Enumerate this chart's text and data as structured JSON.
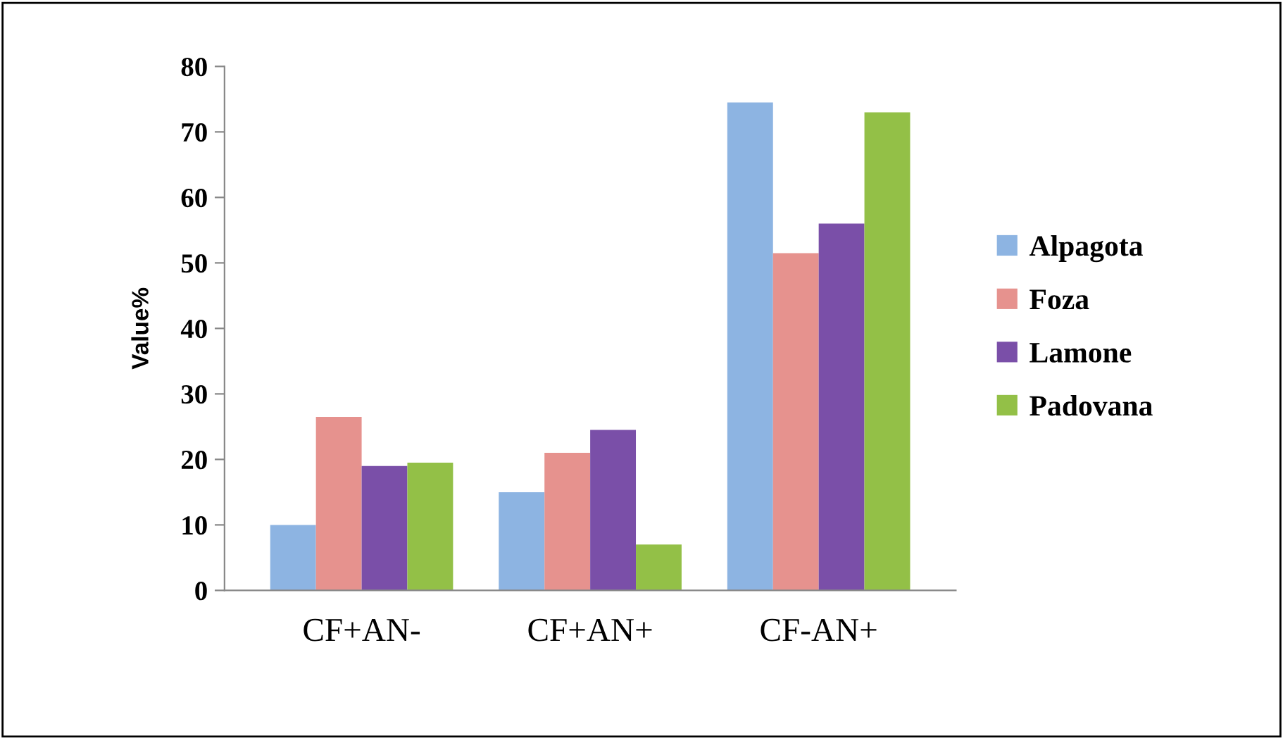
{
  "chart_data": {
    "type": "bar",
    "ylabel": "Value%",
    "categories": [
      "CF+AN-",
      "CF+AN+",
      "CF-AN+"
    ],
    "series": [
      {
        "name": "Alpagota",
        "color": "#8db4e2",
        "values": [
          10,
          15,
          74.5
        ]
      },
      {
        "name": "Foza",
        "color": "#e6928e",
        "values": [
          26.5,
          21,
          51.5
        ]
      },
      {
        "name": "Lamone",
        "color": "#7a4fa8",
        "values": [
          19,
          24.5,
          56
        ]
      },
      {
        "name": "Padovana",
        "color": "#93c047",
        "values": [
          19.5,
          7,
          73
        ]
      }
    ],
    "ylim": [
      0,
      80
    ],
    "yticks": [
      0,
      10,
      20,
      30,
      40,
      50,
      60,
      70,
      80
    ],
    "grid": false,
    "legend": "right"
  }
}
